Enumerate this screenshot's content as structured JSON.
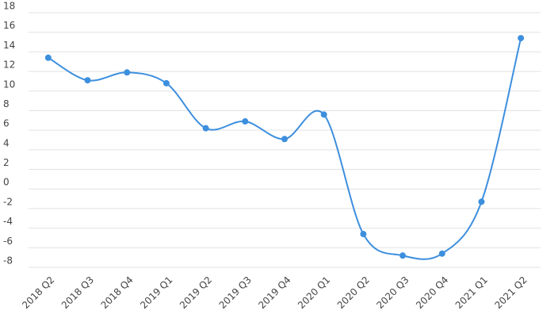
{
  "chart_data": {
    "type": "line",
    "categories": [
      "2018 Q2",
      "2018 Q3",
      "2018 Q4",
      "2019 Q1",
      "2019 Q2",
      "2019 Q3",
      "2019 Q4",
      "2020 Q1",
      "2020 Q2",
      "2020 Q3",
      "2020 Q4",
      "2021 Q1",
      "2021 Q2"
    ],
    "values": [
      13.4,
      11.1,
      11.9,
      10.8,
      6.2,
      6.9,
      5.1,
      7.6,
      -4.6,
      -6.8,
      -6.6,
      -1.3,
      15.4
    ],
    "color": "#3d8fde",
    "ylim": [
      -8,
      18
    ],
    "yticks": [
      -8,
      -6,
      -4,
      -2,
      0,
      2,
      4,
      6,
      8,
      10,
      12,
      14,
      16,
      18
    ],
    "grid": true,
    "smooth": true
  }
}
